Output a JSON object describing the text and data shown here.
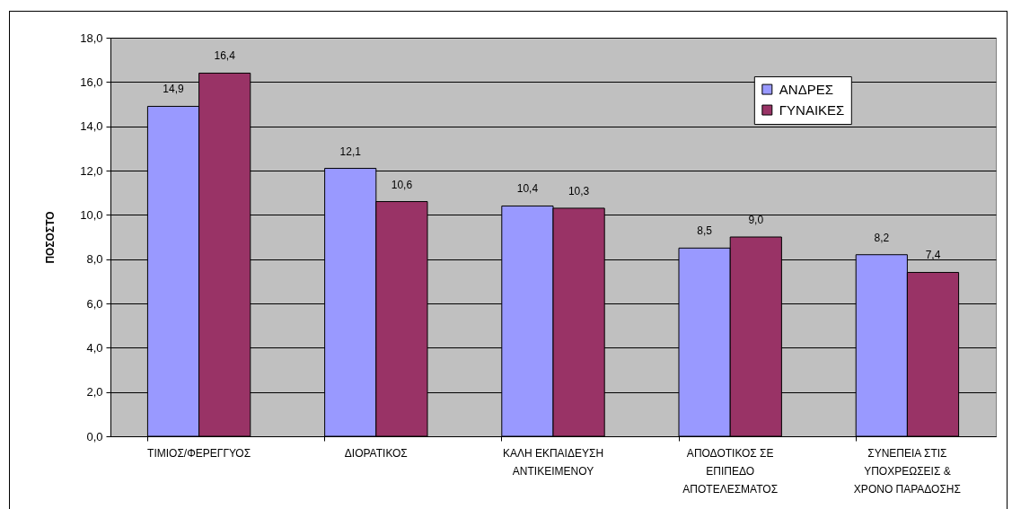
{
  "chart_data": {
    "type": "bar",
    "categories": [
      "ΤΙΜΙΟΣ/ΦΕΡΕΓΓΥΟΣ",
      "ΔΙΟΡΑΤΙΚΟΣ",
      "ΚΑΛΗ ΕΚΠΑΙΔΕΥΣΗ ΑΝΤΙΚΕΙΜΕΝΟΥ",
      "ΑΠΟΔΟΤΙΚΟΣ ΣΕ ΕΠΙΠΕΔΟ ΑΠΟΤΕΛΕΣΜΑΤΟΣ",
      "ΣΥΝΕΠΕΙΑ ΣΤΙΣ ΥΠΟΧΡΕΩΣΕΙΣ & ΧΡΟΝΟ ΠΑΡΑΔΟΣΗΣ"
    ],
    "series": [
      {
        "name": "ΑΝΔΡΕΣ",
        "color": "#9999ff",
        "values": [
          14.9,
          12.1,
          10.4,
          8.5,
          8.2
        ],
        "value_labels": [
          "14,9",
          "12,1",
          "10,4",
          "8,5",
          "8,2"
        ]
      },
      {
        "name": "ΓΥΝΑΙΚΕΣ",
        "color": "#993366",
        "values": [
          16.4,
          10.6,
          10.3,
          9.0,
          7.4
        ],
        "value_labels": [
          "16,4",
          "10,6",
          "10,3",
          "9,0",
          "7,4"
        ]
      }
    ],
    "ylabel": "ΠΟΣΟΣΤΟ",
    "ylim": [
      0,
      18
    ],
    "yticks": [
      {
        "value": 0,
        "label": "0,0"
      },
      {
        "value": 2,
        "label": "2,0"
      },
      {
        "value": 4,
        "label": "4,0"
      },
      {
        "value": 6,
        "label": "6,0"
      },
      {
        "value": 8,
        "label": "8,0"
      },
      {
        "value": 10,
        "label": "10,0"
      },
      {
        "value": 12,
        "label": "12,0"
      },
      {
        "value": 14,
        "label": "14,0"
      },
      {
        "value": 16,
        "label": "16,0"
      },
      {
        "value": 18,
        "label": "18,0"
      }
    ],
    "grid": "y",
    "legend": "top right"
  }
}
